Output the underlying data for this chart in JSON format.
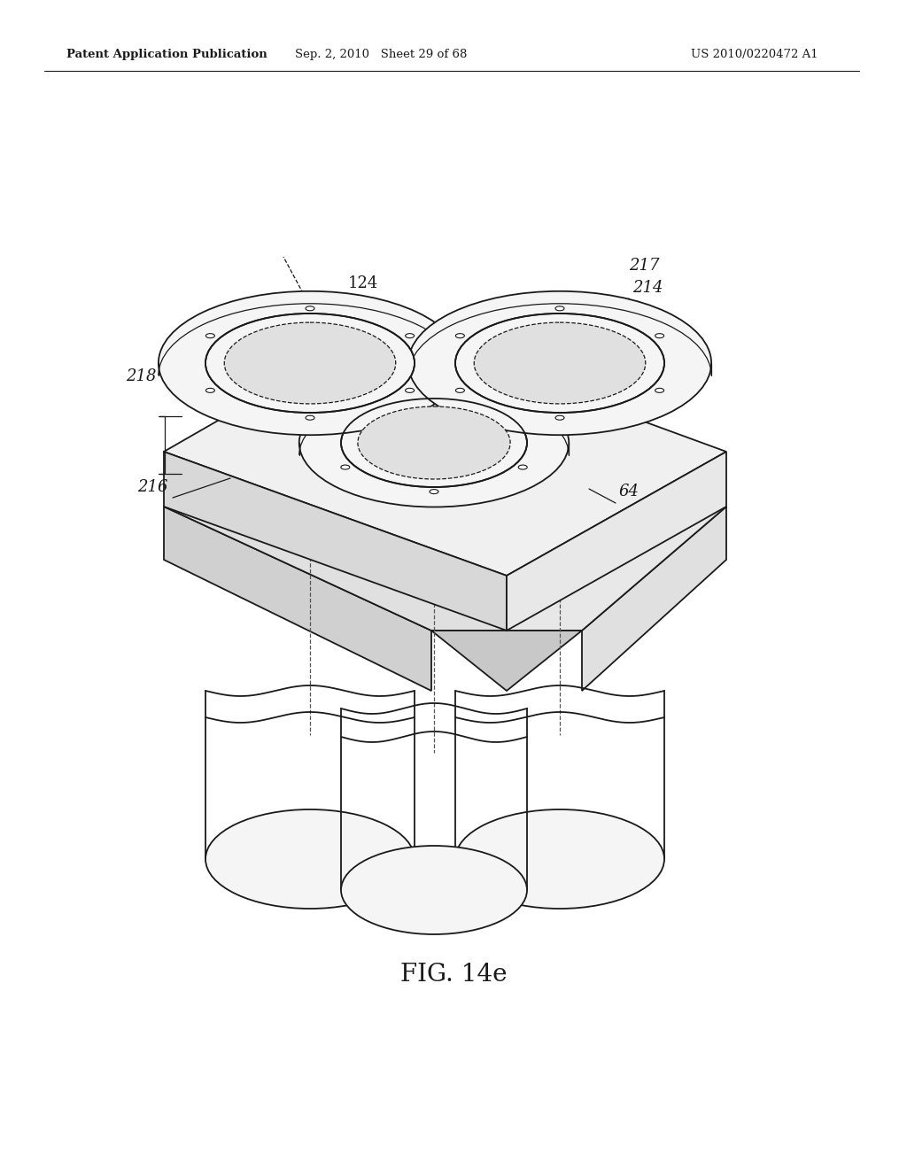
{
  "bg_color": "#ffffff",
  "header_left": "Patent Application Publication",
  "header_mid": "Sep. 2, 2010   Sheet 29 of 68",
  "header_right": "US 2010/0220472 A1",
  "figure_label": "FIG. 14e",
  "line_color": "#1a1a1a",
  "dash_color": "#555555",
  "plate_face_color": "#f0f0f0",
  "plate_left_color": "#d8d8d8",
  "plate_right_color": "#e8e8e8",
  "cyl_face_color": "#f5f5f5",
  "cyl_inner_color": "#e0e0e0"
}
